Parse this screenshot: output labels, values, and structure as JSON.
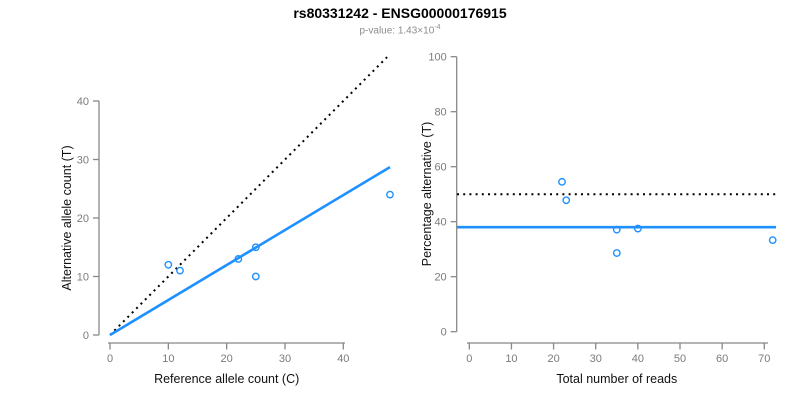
{
  "header": {
    "title": "rs80331242 - ENSG00000176915",
    "subtitle_base": "p-value: 1.43×10",
    "subtitle_exponent": "-4"
  },
  "colors": {
    "accent_blue": "#1E90FF",
    "dotted_black": "#000000",
    "axis_gray": "#888888",
    "tick_label_gray": "#7b7b7b",
    "subtitle_gray": "#8c8c8c",
    "axis_title_black": "#111111"
  },
  "chart_data": [
    {
      "type": "scatter",
      "title": "",
      "xlabel": "Reference allele count (C)",
      "ylabel": "Alternative allele count (T)",
      "xlim": [
        0,
        48
      ],
      "ylim": [
        0,
        48
      ],
      "xticks": [
        0,
        10,
        20,
        30,
        40
      ],
      "yticks": [
        0,
        10,
        20,
        30,
        40
      ],
      "grid": false,
      "points": [
        [
          10,
          12
        ],
        [
          12,
          11
        ],
        [
          22,
          13
        ],
        [
          25,
          15
        ],
        [
          25,
          10
        ],
        [
          48,
          24
        ]
      ],
      "lines": [
        {
          "name": "identity-line",
          "style": "dotted",
          "color": "#000000",
          "from": [
            0,
            0
          ],
          "to": [
            47.5,
            47.5
          ]
        },
        {
          "name": "fit-line",
          "style": "solid",
          "color": "#1E90FF",
          "from": [
            0,
            0
          ],
          "to": [
            48,
            28.7
          ],
          "slope": 0.6
        }
      ]
    },
    {
      "type": "scatter",
      "title": "",
      "xlabel": "Total number of reads",
      "ylabel": "Percentage alternative (T)",
      "xlim": [
        0,
        72
      ],
      "ylim": [
        0,
        100
      ],
      "xticks": [
        0,
        10,
        20,
        30,
        40,
        50,
        60,
        70
      ],
      "yticks": [
        0,
        20,
        40,
        60,
        80,
        100
      ],
      "grid": false,
      "points": [
        [
          22,
          54.5
        ],
        [
          23,
          47.8
        ],
        [
          35,
          37.1
        ],
        [
          40,
          37.5
        ],
        [
          35,
          28.6
        ],
        [
          72,
          33.3
        ]
      ],
      "lines": [
        {
          "name": "expected-50pct-line",
          "style": "dotted",
          "color": "#000000",
          "y": 50
        },
        {
          "name": "observed-mean-line",
          "style": "solid",
          "color": "#1E90FF",
          "y": 38
        }
      ]
    }
  ]
}
